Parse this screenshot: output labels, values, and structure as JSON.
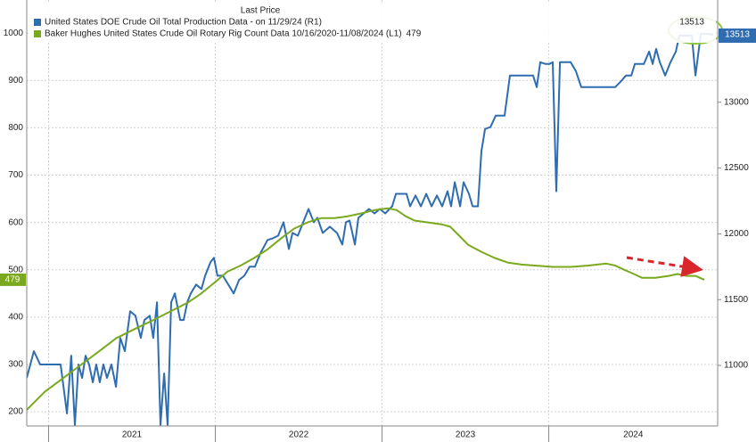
{
  "chart_data": {
    "type": "line",
    "legend_title": "Last Price",
    "xlim": [
      2020.869,
      2025.013
    ],
    "xticks": [
      {
        "value": 2021,
        "label": "2021"
      },
      {
        "value": 2022,
        "label": "2022"
      },
      {
        "value": 2023,
        "label": "2023"
      },
      {
        "value": 2024,
        "label": "2024"
      }
    ],
    "ylim": [
      170,
      1070
    ],
    "yticks": [
      200,
      300,
      400,
      500,
      600,
      700,
      800,
      900,
      1000
    ],
    "y2lim": [
      10540,
      13777
    ],
    "y2ticks": [
      11000,
      11500,
      12000,
      12500,
      13000
    ],
    "grid": true,
    "series": [
      {
        "name": "United States DOE Crude Oil Total Production Data  - on 11/29/24  (R1)",
        "color": "#2f6db0",
        "axis": "y2",
        "x": [
          2020.869,
          2020.912,
          2020.949,
          2021.029,
          2021.072,
          2021.11,
          2021.136,
          2021.158,
          2021.179,
          2021.201,
          2021.222,
          2021.243,
          2021.265,
          2021.286,
          2021.307,
          2021.329,
          2021.35,
          2021.377,
          2021.404,
          2021.43,
          2021.457,
          2021.489,
          2021.521,
          2021.553,
          2021.575,
          2021.607,
          2021.628,
          2021.65,
          2021.671,
          2021.693,
          2021.714,
          2021.735,
          2021.757,
          2021.789,
          2021.81,
          2021.832,
          2021.853,
          2021.885,
          2021.917,
          2021.939,
          2021.971,
          2021.992,
          2022.013,
          2022.045,
          2022.078,
          2022.11,
          2022.142,
          2022.174,
          2022.206,
          2022.238,
          2022.27,
          2022.313,
          2022.345,
          2022.377,
          2022.409,
          2022.441,
          2022.463,
          2022.495,
          2022.527,
          2022.559,
          2022.591,
          2022.612,
          2022.644,
          2022.687,
          2022.73,
          2022.762,
          2022.783,
          2022.805,
          2022.837,
          2022.858,
          2022.89,
          2022.922,
          2022.955,
          2022.987,
          2023.019,
          2023.061,
          2023.083,
          2023.115,
          2023.147,
          2023.168,
          2023.201,
          2023.233,
          2023.265,
          2023.297,
          2023.329,
          2023.361,
          2023.393,
          2023.414,
          2023.436,
          2023.468,
          2023.489,
          2023.521,
          2023.543,
          2023.575,
          2023.596,
          2023.618,
          2023.65,
          2023.682,
          2023.714,
          2023.735,
          2023.767,
          2023.81,
          2023.864,
          2023.906,
          2023.928,
          2023.949,
          2023.981,
          2024.003,
          2024.024,
          2024.045,
          2024.067,
          2024.099,
          2024.131,
          2024.163,
          2024.195,
          2024.238,
          2024.291,
          2024.345,
          2024.398,
          2024.43,
          2024.463,
          2024.495,
          2024.516,
          2024.548,
          2024.57,
          2024.602,
          2024.623,
          2024.644,
          2024.666,
          2024.698,
          2024.73,
          2024.762,
          2024.783,
          2024.826,
          2024.858,
          2024.88,
          2024.912,
          2024.96,
          2024.987
        ],
        "values": [
          10905,
          11108,
          11007,
          11007,
          11007,
          10635,
          11074,
          10547,
          11007,
          10905,
          11074,
          11007,
          10872,
          11007,
          10872,
          11007,
          10905,
          11007,
          10838,
          11209,
          11108,
          11412,
          11378,
          11209,
          11345,
          11378,
          11209,
          11480,
          10547,
          10939,
          10547,
          11480,
          11547,
          11345,
          11345,
          11480,
          11547,
          11615,
          11581,
          11682,
          11784,
          11818,
          11682,
          11682,
          11615,
          11547,
          11649,
          11682,
          11750,
          11750,
          11851,
          11953,
          11966,
          11986,
          12088,
          11885,
          12007,
          11986,
          12088,
          12189,
          12088,
          12122,
          12007,
          12054,
          12007,
          11919,
          12088,
          12101,
          11919,
          12122,
          12155,
          12189,
          12155,
          12189,
          12155,
          12209,
          12304,
          12304,
          12304,
          12209,
          12291,
          12209,
          12304,
          12209,
          12291,
          12209,
          12324,
          12209,
          12392,
          12209,
          12392,
          12304,
          12209,
          12209,
          12628,
          12797,
          12811,
          12899,
          12899,
          12899,
          13203,
          13203,
          13203,
          13203,
          13115,
          13304,
          13291,
          13291,
          13304,
          12324,
          13304,
          13304,
          13304,
          13236,
          13115,
          13115,
          13115,
          13115,
          13115,
          13155,
          13203,
          13203,
          13291,
          13291,
          13291,
          13385,
          13291,
          13405,
          13304,
          13203,
          13304,
          13385,
          13507,
          13507,
          13507,
          13203,
          13520,
          13520,
          13513
        ]
      },
      {
        "name": "Baker Hughes United States Crude Oil Rotary Rig Count Data 10/16/2020-11/08/2024  (L1)",
        "color": "#7aa81e",
        "axis": "y",
        "x": [
          2020.869,
          2020.976,
          2021.083,
          2021.19,
          2021.297,
          2021.404,
          2021.511,
          2021.618,
          2021.725,
          2021.832,
          2021.912,
          2021.992,
          2022.072,
          2022.152,
          2022.233,
          2022.313,
          2022.393,
          2022.473,
          2022.553,
          2022.634,
          2022.714,
          2022.794,
          2022.874,
          2022.955,
          2023.035,
          2023.088,
          2023.142,
          2023.195,
          2023.275,
          2023.356,
          2023.409,
          2023.463,
          2023.516,
          2023.596,
          2023.676,
          2023.757,
          2023.837,
          2023.917,
          2024.024,
          2024.131,
          2024.238,
          2024.345,
          2024.398,
          2024.452,
          2024.505,
          2024.56,
          2024.639,
          2024.719,
          2024.773,
          2024.826,
          2024.88,
          2024.933
        ],
        "values": [
          204,
          242,
          270,
          298,
          326,
          355,
          374,
          392,
          411,
          430,
          449,
          472,
          496,
          509,
          525,
          543,
          566,
          587,
          600,
          609,
          609,
          613,
          619,
          626,
          630,
          626,
          613,
          604,
          600,
          596,
          591,
          572,
          553,
          538,
          525,
          515,
          511,
          509,
          506,
          506,
          509,
          513,
          509,
          500,
          492,
          483,
          483,
          487,
          491,
          487,
          487,
          479
        ]
      }
    ]
  }
}
